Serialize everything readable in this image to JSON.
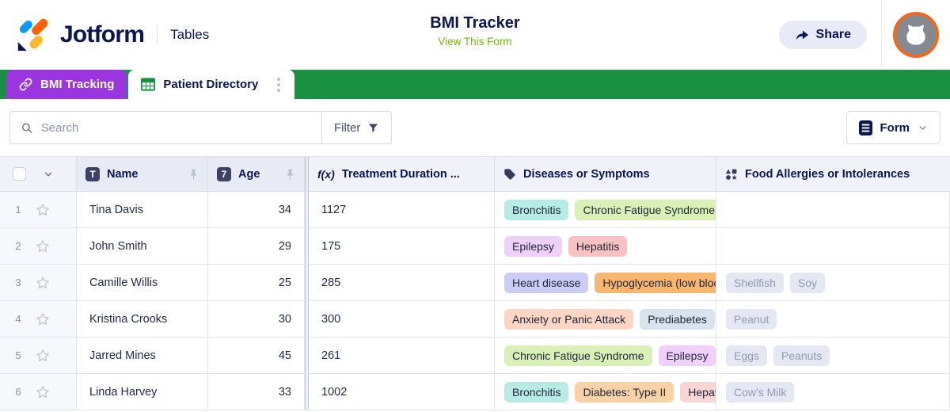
{
  "header": {
    "brand": "Jotform",
    "product": "Tables",
    "title": "BMI Tracker",
    "view_link": "View This Form",
    "share_label": "Share"
  },
  "tabs": [
    {
      "label": "BMI Tracking",
      "icon": "link-icon",
      "active": false
    },
    {
      "label": "Patient Directory",
      "icon": "table-grid-icon",
      "active": true
    }
  ],
  "toolbar": {
    "search_placeholder": "Search",
    "filter_label": "Filter",
    "form_label": "Form"
  },
  "table": {
    "columns": [
      {
        "label": "Name",
        "icon": "text-column-icon",
        "pinned": true
      },
      {
        "label": "Age",
        "icon": "number-column-icon",
        "pinned": true
      },
      {
        "label": "Treatment Duration ...",
        "icon": "formula-column-icon"
      },
      {
        "label": "Diseases or Symptoms",
        "icon": "tag-column-icon"
      },
      {
        "label": "Food Allergies or Intolerances",
        "icon": "widgets-column-icon"
      }
    ],
    "rows": [
      {
        "num": "1",
        "name": "Tina Davis",
        "age": "34",
        "duration": "1127",
        "diseases": [
          {
            "label": "Bronchitis",
            "bg": "#b7ece4"
          },
          {
            "label": "Chronic Fatigue Syndrome",
            "bg": "#d9f0b6"
          }
        ],
        "allergies": []
      },
      {
        "num": "2",
        "name": "John Smith",
        "age": "29",
        "duration": "175",
        "diseases": [
          {
            "label": "Epilepsy",
            "bg": "#eed0f8"
          },
          {
            "label": "Hepatitis",
            "bg": "#f9c2c2"
          }
        ],
        "allergies": []
      },
      {
        "num": "3",
        "name": "Camille Willis",
        "age": "25",
        "duration": "285",
        "diseases": [
          {
            "label": "Heart disease",
            "bg": "#cbcdf6"
          },
          {
            "label": "Hypoglycemia (low blood sugar)",
            "bg": "#f9b66e"
          }
        ],
        "allergies": [
          "Shellfish",
          "Soy"
        ]
      },
      {
        "num": "4",
        "name": "Kristina Crooks",
        "age": "30",
        "duration": "300",
        "diseases": [
          {
            "label": "Anxiety or Panic Attack",
            "bg": "#fcd5c5"
          },
          {
            "label": "Prediabetes",
            "bg": "#d8e3ed"
          }
        ],
        "allergies": [
          "Peanut"
        ]
      },
      {
        "num": "5",
        "name": "Jarred Mines",
        "age": "45",
        "duration": "261",
        "diseases": [
          {
            "label": "Chronic Fatigue Syndrome",
            "bg": "#d9f0b6"
          },
          {
            "label": "Epilepsy",
            "bg": "#eed0f8"
          }
        ],
        "allergies": [
          "Eggs",
          "Peanuts"
        ]
      },
      {
        "num": "6",
        "name": "Linda Harvey",
        "age": "33",
        "duration": "1002",
        "diseases": [
          {
            "label": "Bronchitis",
            "bg": "#b7ece4"
          },
          {
            "label": "Diabetes: Type II",
            "bg": "#f7d2a6"
          },
          {
            "label": "Hepatitis",
            "bg": "#f8d6d3"
          }
        ],
        "allergies": [
          "Cow's Milk"
        ]
      }
    ]
  },
  "colors": {
    "brand_navy": "#0a1551",
    "tab_strip_green": "#1a9142",
    "tab_purple": "#9b35e0",
    "view_link_green": "#77b60f",
    "avatar_ring_orange": "#ef6a1e",
    "share_bg": "#e8eaf8"
  }
}
